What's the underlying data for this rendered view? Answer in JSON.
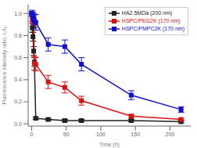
{
  "chart_data": {
    "type": "line",
    "xlabel": "Time (h)",
    "ylabel": "Fluorescence intensity ratio, Iₜ/I₀",
    "x": [
      0,
      1,
      2,
      3,
      4,
      6,
      24,
      48,
      72,
      144,
      216
    ],
    "series": [
      {
        "name": "HA2.5MDa (200 nm)",
        "color": "#222222",
        "marker": "square",
        "line_style": "solid",
        "values": [
          1.0,
          0.87,
          0.79,
          0.66,
          0.56,
          0.05,
          0.04,
          0.03,
          0.03,
          0.03,
          0.02
        ],
        "yerr": [
          0.0,
          0.04,
          0.04,
          0.04,
          0.04,
          0.01,
          0.01,
          0.01,
          0.01,
          0.01,
          0.01
        ]
      },
      {
        "name": "HSPC/PEG2K (170 nm)",
        "color": "#dd1111",
        "marker": "square",
        "line_style": "solid",
        "values": [
          1.0,
          0.96,
          0.93,
          0.92,
          0.55,
          0.54,
          0.38,
          0.33,
          0.21,
          0.07,
          0.04
        ],
        "yerr": [
          0.0,
          0.03,
          0.04,
          0.04,
          0.06,
          0.06,
          0.06,
          0.05,
          0.04,
          0.015,
          0.01
        ]
      },
      {
        "name": "HSPC/PMPC2K (170 nm)",
        "color": "#1111cc",
        "marker": "square",
        "line_style": "solid",
        "values": [
          1.0,
          1.0,
          0.97,
          0.95,
          0.93,
          0.92,
          0.72,
          0.7,
          0.54,
          0.26,
          0.13
        ],
        "yerr": [
          0.0,
          0.03,
          0.04,
          0.05,
          0.06,
          0.07,
          0.06,
          0.06,
          0.06,
          0.04,
          0.025
        ]
      }
    ],
    "xlim": [
      -5,
      230
    ],
    "ylim": [
      -0.02,
      1.08
    ],
    "xticks": [
      0,
      50,
      100,
      150,
      200
    ],
    "yticks": [
      {
        "value": 0,
        "label": "0.0"
      },
      0.2,
      0.4,
      0.6,
      0.8,
      {
        "value": 1,
        "label": "1.0"
      }
    ],
    "grid": false,
    "legend": "upper right"
  }
}
